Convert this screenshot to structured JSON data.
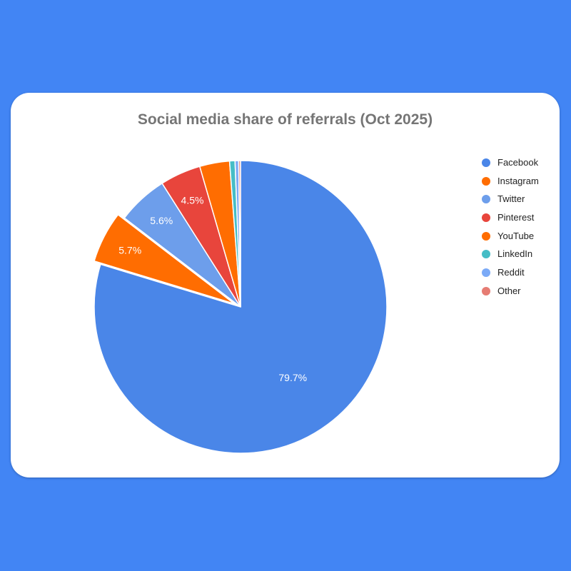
{
  "chart_data": {
    "type": "pie",
    "title": "Social media share of referrals (Oct 2025)",
    "legend_position": "right",
    "start": "top",
    "direction": "clockwise",
    "slices": [
      {
        "name": "Facebook",
        "value": 79.7,
        "color": "#4a86e8",
        "label": "79.7%",
        "exploded": false
      },
      {
        "name": "Instagram",
        "value": 5.7,
        "color": "#ff6d01",
        "label": "5.7%",
        "exploded": true
      },
      {
        "name": "Twitter",
        "value": 5.6,
        "color": "#6d9eeb",
        "label": "5.6%",
        "exploded": false
      },
      {
        "name": "Pinterest",
        "value": 4.5,
        "color": "#e8453c",
        "label": "4.5%",
        "exploded": false
      },
      {
        "name": "YouTube",
        "value": 3.3,
        "color": "#ff6d01",
        "label": "",
        "exploded": false
      },
      {
        "name": "LinkedIn",
        "value": 0.6,
        "color": "#46bdc6",
        "label": "",
        "exploded": false
      },
      {
        "name": "Reddit",
        "value": 0.4,
        "color": "#7baaf7",
        "label": "",
        "exploded": false
      },
      {
        "name": "Other",
        "value": 0.2,
        "color": "#e67c73",
        "label": "",
        "exploded": false
      }
    ]
  }
}
